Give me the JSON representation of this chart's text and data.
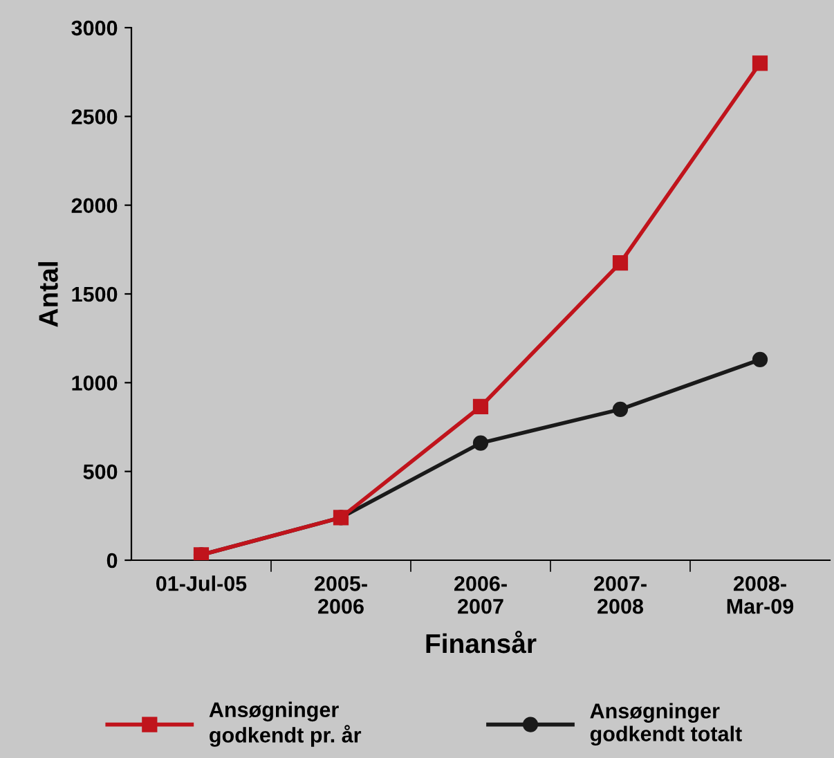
{
  "chart_data": {
    "type": "line",
    "xlabel": "Finansår",
    "ylabel": "Antal",
    "categories": [
      "01-Jul-05",
      "2005-\n2006",
      "2006-\n2007",
      "2007-\n2008",
      "2008-\nMar-09"
    ],
    "series": [
      {
        "name": "Ansøgninger\ngodkendt pr. år",
        "color": "#c0141c",
        "marker": "square",
        "values": [
          30,
          240,
          865,
          1675,
          2800
        ]
      },
      {
        "name": "Ansøgninger\ngodkendt totalt",
        "color": "#1a1a1a",
        "marker": "circle",
        "values": [
          30,
          240,
          660,
          850,
          1130
        ]
      }
    ],
    "ylim": [
      0,
      3000
    ],
    "yticks": [
      0,
      500,
      1000,
      1500,
      2000,
      2500,
      3000
    ],
    "grid": false,
    "legend": "bottom"
  }
}
